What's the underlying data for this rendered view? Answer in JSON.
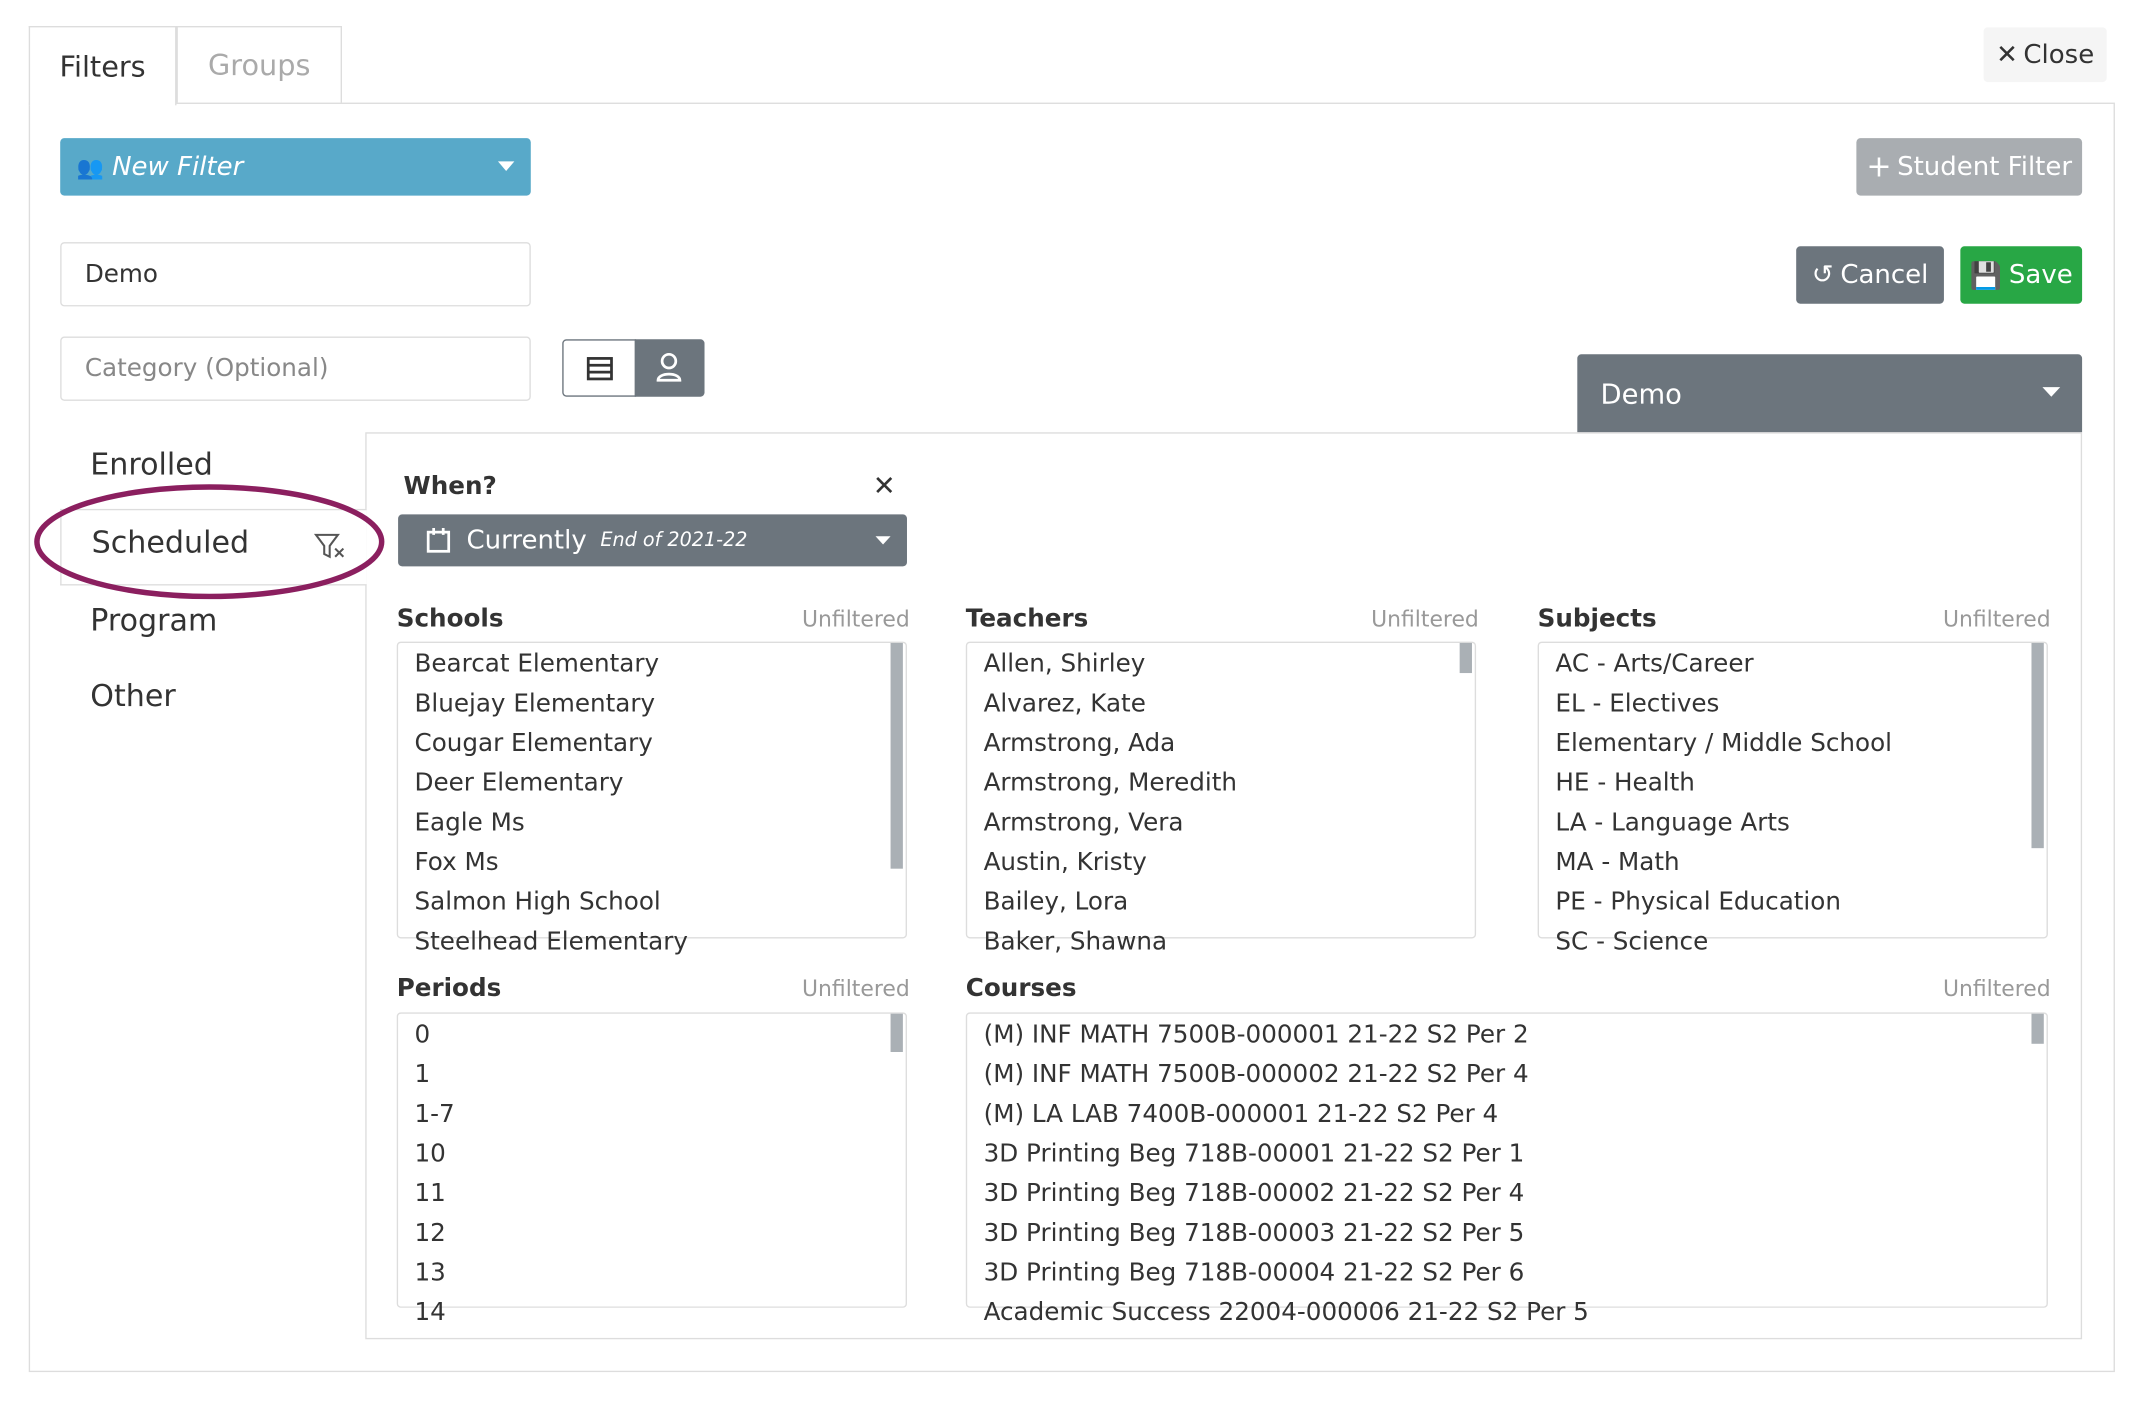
{
  "tabs": [
    "Filters",
    "Groups"
  ],
  "close": "Close",
  "new_filter": "New Filter",
  "student_filter": "Student Filter",
  "name_input": "Demo",
  "category_placeholder": "Category (Optional)",
  "cancel": "Cancel",
  "save": "Save",
  "group_select": "Demo",
  "nav": [
    "Enrolled",
    "Scheduled",
    "Program",
    "Other"
  ],
  "when": {
    "label": "When?",
    "value": "Currently",
    "detail": "End of 2021-22"
  },
  "lists": [
    {
      "title": "Schools",
      "status": "Unfiltered",
      "items": [
        "Bearcat Elementary",
        "Bluejay Elementary",
        "Cougar Elementary",
        "Deer Elementary",
        "Eagle Ms",
        "Fox Ms",
        "Salmon High School",
        "Steelhead Elementary"
      ]
    },
    {
      "title": "Teachers",
      "status": "Unfiltered",
      "items": [
        "Allen, Shirley",
        "Alvarez, Kate",
        "Armstrong, Ada",
        "Armstrong, Meredith",
        "Armstrong, Vera",
        "Austin, Kristy",
        "Bailey, Lora",
        "Baker, Shawna"
      ]
    },
    {
      "title": "Subjects",
      "status": "Unfiltered",
      "items": [
        "AC - Arts/Career",
        "EL - Electives",
        "Elementary / Middle School",
        "HE - Health",
        "LA - Language Arts",
        "MA - Math",
        "PE - Physical Education",
        "SC - Science"
      ]
    },
    {
      "title": "Periods",
      "status": "Unfiltered",
      "items": [
        "0",
        "1",
        "1-7",
        "10",
        "11",
        "12",
        "13",
        "14"
      ]
    },
    {
      "title": "Courses",
      "status": "Unfiltered",
      "items": [
        "(M) INF MATH 7500B-000001 21-22 S2 Per 2",
        "(M) INF MATH 7500B-000002 21-22 S2 Per 4",
        "(M) LA LAB 7400B-000001 21-22 S2 Per 4",
        "3D Printing Beg 718B-00001 21-22 S2 Per 1",
        "3D Printing Beg 718B-00002 21-22 S2 Per 4",
        "3D Printing Beg 718B-00003 21-22 S2 Per 5",
        "3D Printing Beg 718B-00004 21-22 S2 Per 6",
        "Academic Success 22004-000006 21-22 S2 Per 5"
      ]
    }
  ]
}
